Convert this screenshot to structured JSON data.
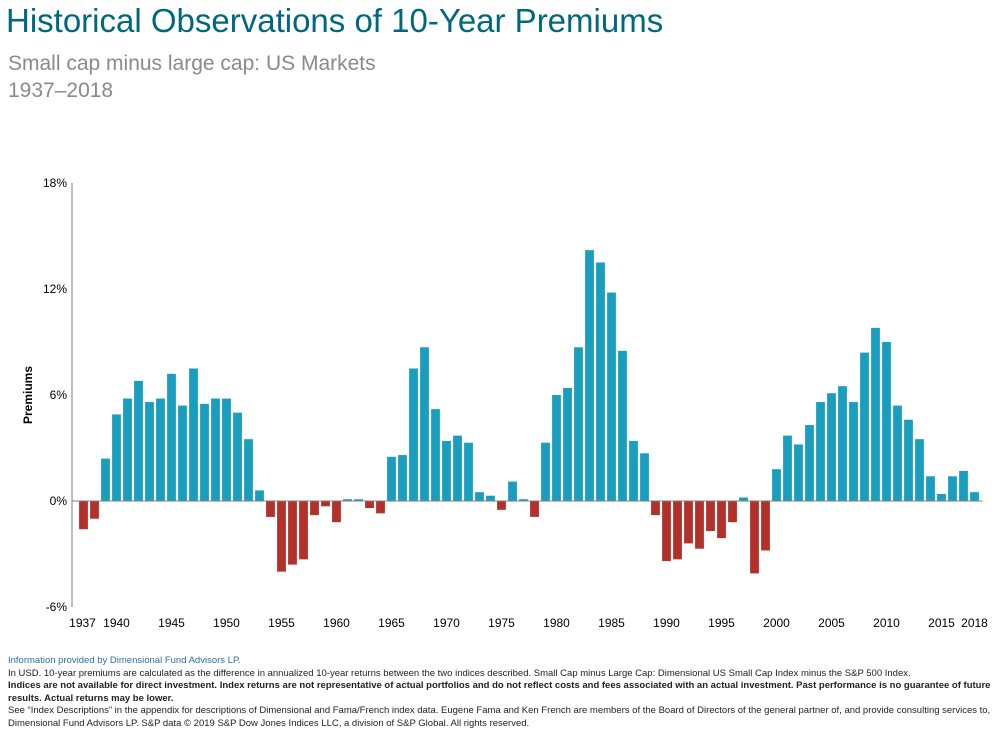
{
  "header": {
    "title": "Historical Observations of 10-Year Premiums",
    "subtitle_line1": "Small cap minus large cap: US Markets",
    "subtitle_line2": "1937–2018"
  },
  "chart_data": {
    "type": "bar",
    "ylabel": "Premiums",
    "ylim": [
      -6,
      18
    ],
    "yticks": [
      -6,
      0,
      6,
      12,
      18
    ],
    "ytick_labels": [
      "-6%",
      "0%",
      "6%",
      "12%",
      "18%"
    ],
    "xtick_labels": [
      "1937",
      "1940",
      "1945",
      "1950",
      "1955",
      "1960",
      "1965",
      "1970",
      "1975",
      "1980",
      "1985",
      "1990",
      "1995",
      "2000",
      "2005",
      "2010",
      "2015",
      "2018"
    ],
    "positive_color": "#1a9ec0",
    "negative_color": "#b3312b",
    "grid": false,
    "categories": [
      1937,
      1938,
      1939,
      1940,
      1941,
      1942,
      1943,
      1944,
      1945,
      1946,
      1947,
      1948,
      1949,
      1950,
      1951,
      1952,
      1953,
      1954,
      1955,
      1956,
      1957,
      1958,
      1959,
      1960,
      1961,
      1962,
      1963,
      1964,
      1965,
      1966,
      1967,
      1968,
      1969,
      1970,
      1971,
      1972,
      1973,
      1974,
      1975,
      1976,
      1977,
      1978,
      1979,
      1980,
      1981,
      1982,
      1983,
      1984,
      1985,
      1986,
      1987,
      1988,
      1989,
      1990,
      1991,
      1992,
      1993,
      1994,
      1995,
      1996,
      1997,
      1998,
      1999,
      2000,
      2001,
      2002,
      2003,
      2004,
      2005,
      2006,
      2007,
      2008,
      2009,
      2010,
      2011,
      2012,
      2013,
      2014,
      2015,
      2016,
      2017,
      2018
    ],
    "values": [
      -1.6,
      -1.0,
      2.4,
      4.9,
      5.8,
      6.8,
      5.6,
      5.8,
      7.2,
      5.4,
      7.5,
      5.5,
      5.8,
      5.8,
      5.0,
      3.5,
      0.6,
      -0.9,
      -4.0,
      -3.6,
      -3.3,
      -0.8,
      -0.3,
      -1.2,
      0.1,
      0.1,
      -0.4,
      -0.7,
      2.5,
      2.6,
      7.5,
      8.7,
      5.2,
      3.4,
      3.7,
      3.3,
      0.5,
      0.3,
      -0.5,
      1.1,
      0.1,
      -0.9,
      3.3,
      6.0,
      6.4,
      8.7,
      14.2,
      13.5,
      11.8,
      8.5,
      3.4,
      2.7,
      -0.8,
      -3.4,
      -3.3,
      -2.4,
      -2.7,
      -1.7,
      -2.1,
      -1.2,
      0.2,
      -4.1,
      -2.8,
      1.8,
      3.7,
      3.2,
      4.3,
      5.6,
      6.1,
      6.5,
      5.6,
      8.4,
      9.8,
      9.0,
      5.4,
      4.6,
      3.5,
      1.4,
      0.4,
      1.4,
      1.7,
      0.5
    ]
  },
  "footer": {
    "source": "Information provided by Dimensional Fund Advisors LP.",
    "note": "In USD. 10-year premiums are calculated as the difference in annualized 10-year returns between the two indices described. Small Cap minus Large Cap: Dimensional US Small Cap Index minus the S&P 500 Index.",
    "disclaimer": "Indices are not available for direct investment. Index returns are not representative of actual portfolios and do not reflect costs and fees associated with an actual investment. Past performance is no guarantee of future results. Actual returns may be lower.",
    "descriptions": "See “Index Descriptions” in the appendix for descriptions of Dimensional and Fama/French index data. Eugene Fama and Ken French are members of the Board of Directors of the general partner of, and provide consulting services to, Dimensional Fund Advisors LP. S&P data © 2019 S&P Dow Jones Indices LLC, a division of S&P Global. All rights reserved."
  }
}
